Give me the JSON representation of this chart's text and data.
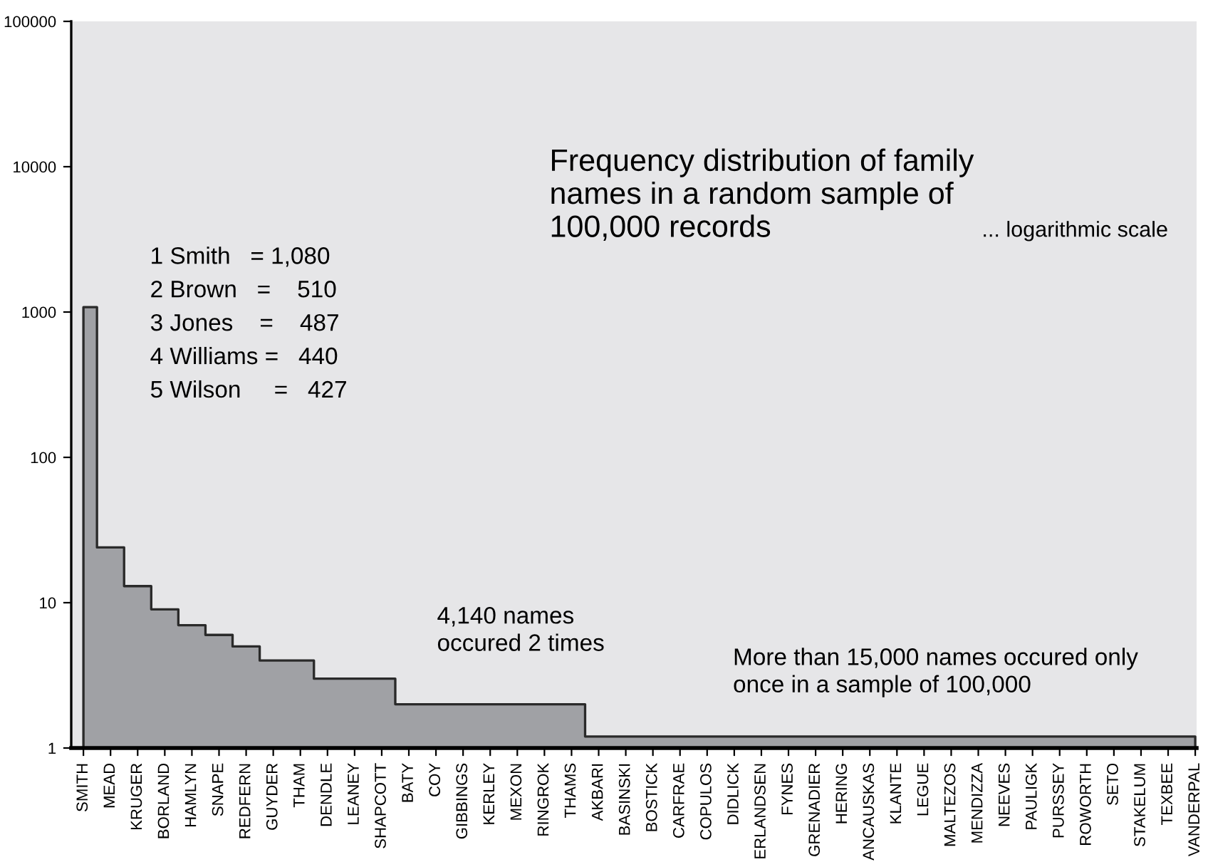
{
  "chart_data": {
    "type": "area",
    "title": "Frequency distribution of family names in a random sample of 100,000 records",
    "subtitle": "... logarithmic scale",
    "annotations": [
      "1 Smith   = 1,080",
      "2 Brown   =    510",
      "3 Jones    =    487",
      "4 Williams =   440",
      "5 Wilson     =   427",
      "4,140 names\noccured 2 times",
      "More than 15,000 names occured only\nonce in a sample of 100,000"
    ],
    "categories": [
      "SMITH",
      "MEAD",
      "KRUGER",
      "BORLAND",
      "HAMLYN",
      "SNAPE",
      "REDFERN",
      "GUYDER",
      "THAM",
      "DENDLE",
      "LEANEY",
      "SHAPCOTT",
      "BATY",
      "COY",
      "GIBBINGS",
      "KERLEY",
      "MEXON",
      "RINGROK",
      "THAMS",
      "AKBARI",
      "BASINSKI",
      "BOSTICK",
      "CARFRAE",
      "COPULOS",
      "DIDLICK",
      "ERLANDSEN",
      "FYNES",
      "GRENADIER",
      "HERING",
      "ANCAUSKAS",
      "KLANTE",
      "LEGUE",
      "MALTEZOS",
      "MENDIZZA",
      "NEEVES",
      "PAULIGK",
      "PURSSEY",
      "ROWORTH",
      "SETO",
      "STAKELUM",
      "TEXBEE",
      "VANDERPAL"
    ],
    "log": "y",
    "ylim": [
      1,
      100000
    ],
    "yticks": [
      1,
      10,
      100,
      1000,
      10000,
      100000
    ],
    "grid": false,
    "legend": false,
    "series": [
      {
        "color": "#a0a1a5",
        "values": [
          1080,
          24,
          13,
          9,
          7,
          6,
          5,
          4,
          4,
          3,
          3,
          3,
          2,
          2,
          2,
          2,
          2,
          2,
          2,
          1.2,
          1.2,
          1.2,
          1.2,
          1.2,
          1.2,
          1.2,
          1.2,
          1.2,
          1.2,
          1.2,
          1.2,
          1.2,
          1.2,
          1.2,
          1.2,
          1.2,
          1.2,
          1.2,
          1.2,
          1.2,
          1.2,
          1.2
        ]
      }
    ]
  }
}
